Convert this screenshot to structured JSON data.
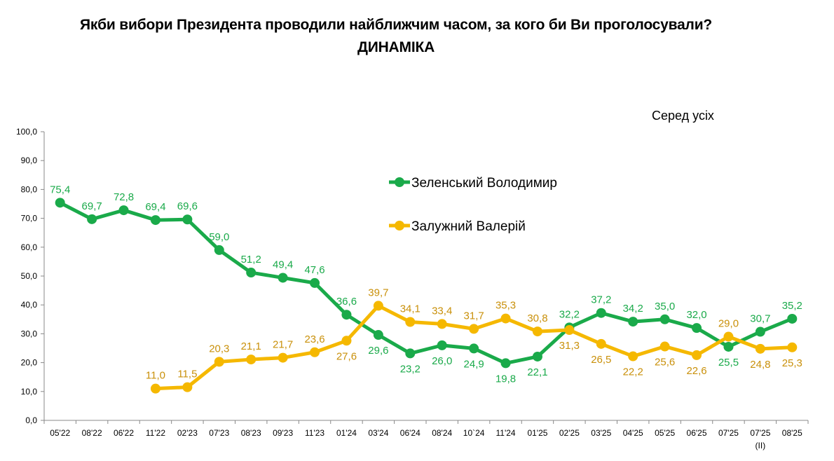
{
  "chart_data": {
    "type": "line",
    "title_line1": "Якби вибори Президента проводили найближчим часом, за кого би Ви проголосували?",
    "title_line2": "ДИНАМІКА",
    "subtitle": "Серед усіх",
    "categories": [
      "05'22",
      "08'22",
      "06'22",
      "11'22",
      "02'23",
      "07'23",
      "08'23",
      "09'23",
      "11'23",
      "01'24",
      "03'24",
      "06'24",
      "08'24",
      "10`24",
      "11'24",
      "01'25",
      "02'25",
      "03'25",
      "04'25",
      "05'25",
      "06'25",
      "07'25",
      "07'25",
      "08'25"
    ],
    "category_notes": [
      "",
      "",
      "",
      "",
      "",
      "",
      "",
      "",
      "",
      "",
      "",
      "",
      "",
      "",
      "",
      "",
      "",
      "",
      "",
      "",
      "",
      "",
      "(II)",
      ""
    ],
    "ylim": [
      0,
      100
    ],
    "yticks": [
      "0,0",
      "10,0",
      "20,0",
      "30,0",
      "40,0",
      "50,0",
      "60,0",
      "70,0",
      "80,0",
      "90,0",
      "100,0"
    ],
    "legend_position": "top-center",
    "series": [
      {
        "name": "Зеленський Володимир",
        "color": "#1aaa4a",
        "label_color": "#1aaa4a",
        "values": [
          75.4,
          69.7,
          72.8,
          69.4,
          69.6,
          59.0,
          51.2,
          49.4,
          47.6,
          36.6,
          29.6,
          23.2,
          26.0,
          24.9,
          19.8,
          22.1,
          32.2,
          37.2,
          34.2,
          35.0,
          32.0,
          25.5,
          30.7,
          35.2
        ],
        "labels": [
          "75,4",
          "69,7",
          "72,8",
          "69,4",
          "69,6",
          "59,0",
          "51,2",
          "49,4",
          "47,6",
          "36,6",
          "29,6",
          "23,2",
          "26,0",
          "24,9",
          "19,8",
          "22,1",
          "32,2",
          "37,2",
          "34,2",
          "35,0",
          "32,0",
          "25,5",
          "30,7",
          "35,2"
        ],
        "label_pos": [
          "above",
          "above",
          "above",
          "above",
          "above",
          "above",
          "above",
          "above",
          "above",
          "above",
          "below",
          "below",
          "below",
          "below",
          "below",
          "below",
          "above",
          "above",
          "above",
          "above",
          "above",
          "below",
          "above",
          "above"
        ]
      },
      {
        "name": "Залужний Валерій",
        "color": "#f5b800",
        "label_color": "#c9900a",
        "values": [
          null,
          null,
          null,
          11.0,
          11.5,
          20.3,
          21.1,
          21.7,
          23.6,
          27.6,
          39.7,
          34.1,
          33.4,
          31.7,
          35.3,
          30.8,
          31.3,
          26.5,
          22.2,
          25.6,
          22.6,
          29.0,
          24.8,
          25.3
        ],
        "labels": [
          null,
          null,
          null,
          "11,0",
          "11,5",
          "20,3",
          "21,1",
          "21,7",
          "23,6",
          "27,6",
          "39,7",
          "34,1",
          "33,4",
          "31,7",
          "35,3",
          "30,8",
          "31,3",
          "26,5",
          "22,2",
          "25,6",
          "22,6",
          "29,0",
          "24,8",
          "25,3"
        ],
        "label_pos": [
          "",
          "",
          "",
          "above",
          "above",
          "above",
          "above",
          "above",
          "above",
          "below",
          "above",
          "above",
          "above",
          "above",
          "above",
          "above",
          "below",
          "below",
          "below",
          "below",
          "below",
          "above",
          "below",
          "below"
        ]
      }
    ]
  }
}
